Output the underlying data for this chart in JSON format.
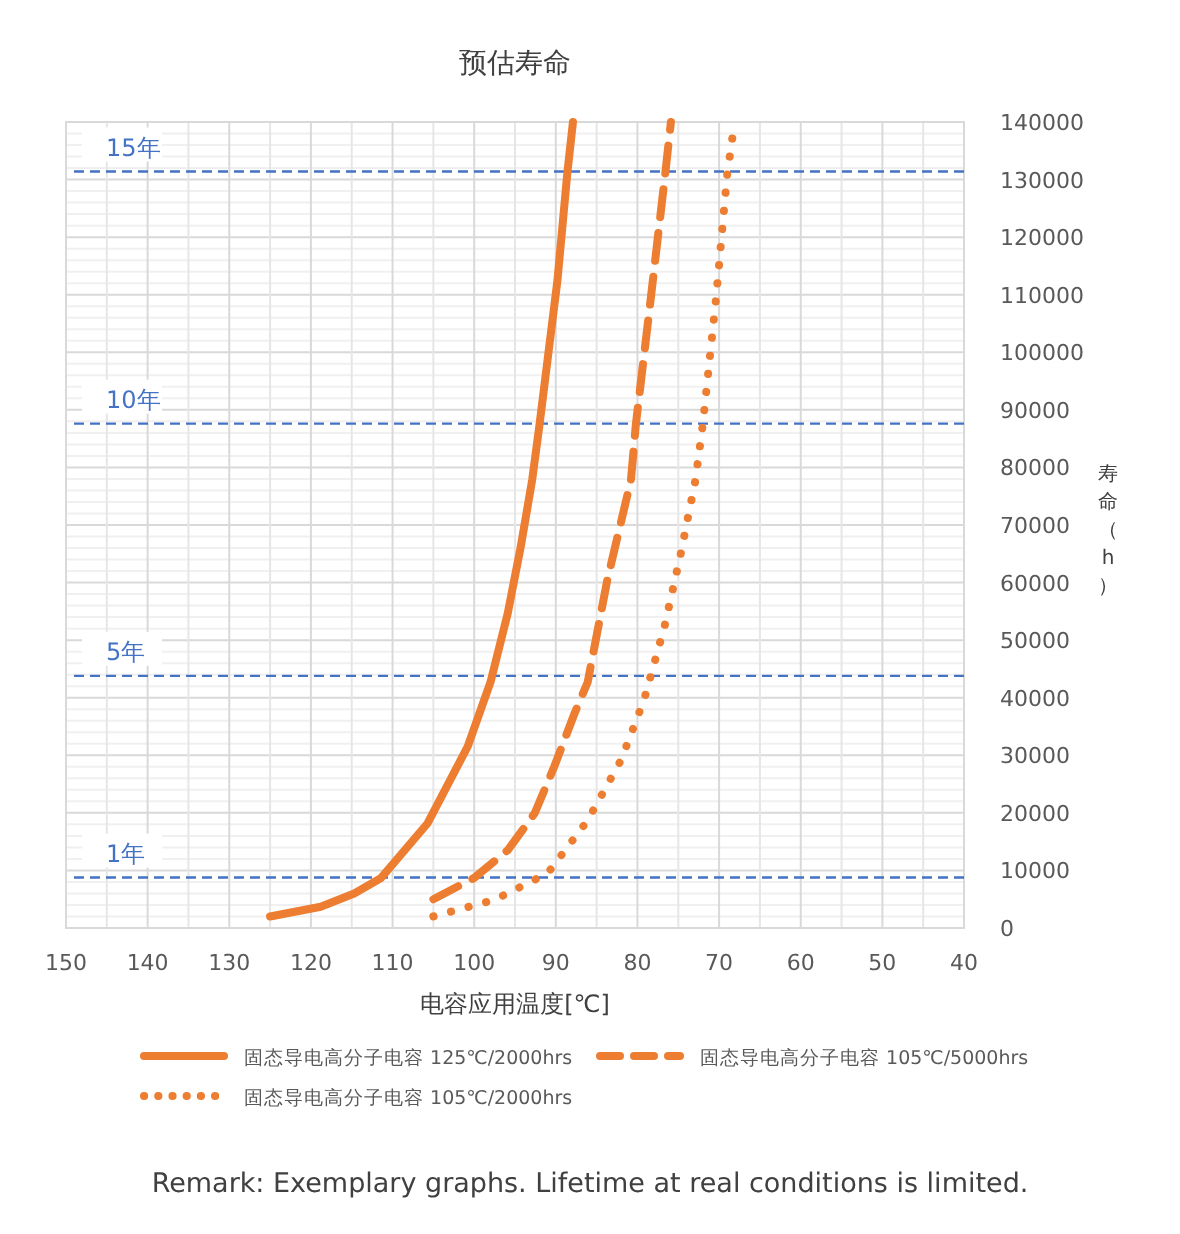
{
  "chart_data": {
    "type": "line",
    "title": "预估寿命",
    "xlabel": "电容应用温度[℃]",
    "ylabel": "寿命（h）",
    "xlim": [
      150,
      40
    ],
    "xticks": [
      150,
      140,
      130,
      120,
      110,
      100,
      90,
      80,
      70,
      60,
      50,
      40
    ],
    "ylim": [
      0,
      140000
    ],
    "yticks": [
      0,
      10000,
      20000,
      30000,
      40000,
      50000,
      60000,
      70000,
      80000,
      90000,
      100000,
      110000,
      120000,
      130000,
      140000
    ],
    "grid": true,
    "legend": "bottom",
    "series": [
      {
        "name": "固态导电高分子电容 125℃/2000hrs",
        "color": "#ed7d31",
        "line_style": "solid",
        "x": [
          125,
          118.8,
          114.7,
          111.4,
          105.7,
          100.8,
          98,
          95.9,
          94.3,
          92.9,
          92,
          89.8,
          88.6,
          87.9
        ],
        "values": [
          2000,
          3700,
          6000,
          8700,
          18200,
          31500,
          42700,
          54600,
          66200,
          77800,
          87400,
          112500,
          131000,
          140000
        ]
      },
      {
        "name": "固态导电高分子电容  105℃/5000hrs",
        "color": "#ed7d31",
        "line_style": "dashed",
        "x": [
          105,
          100,
          95.9,
          92.6,
          90.2,
          87.7,
          86.1,
          83.7,
          80.8,
          80.2,
          78.4,
          76.6,
          75.9
        ],
        "values": [
          5000,
          8700,
          13500,
          19900,
          28000,
          37300,
          42700,
          60400,
          77800,
          87400,
          109000,
          131000,
          140000
        ]
      },
      {
        "name": "固态导电高分子电容 105℃/2000hrs",
        "color": "#ed7d31",
        "line_style": "dotted",
        "x": [
          105,
          97.5,
          91,
          86.1,
          82,
          79.2,
          76.7,
          74.7,
          72.9,
          72,
          70.4,
          69,
          68.1
        ],
        "values": [
          2000,
          4900,
          9500,
          18700,
          29200,
          39600,
          52300,
          65000,
          77800,
          87400,
          109000,
          131000,
          140000
        ]
      }
    ],
    "ref_lines": [
      {
        "axis": "y",
        "value": 131400,
        "label": "15年",
        "color": "#4472c4",
        "line_style": "dashed"
      },
      {
        "axis": "y",
        "value": 87600,
        "label": "10年",
        "color": "#4472c4",
        "line_style": "dashed"
      },
      {
        "axis": "y",
        "value": 43800,
        "label": "5年",
        "color": "#4472c4",
        "line_style": "dashed"
      },
      {
        "axis": "y",
        "value": 8760,
        "label": "1年",
        "color": "#4472c4",
        "line_style": "dashed"
      }
    ],
    "annotations": [
      "Remark: Exemplary graphs. Lifetime at real conditions is limited."
    ]
  }
}
